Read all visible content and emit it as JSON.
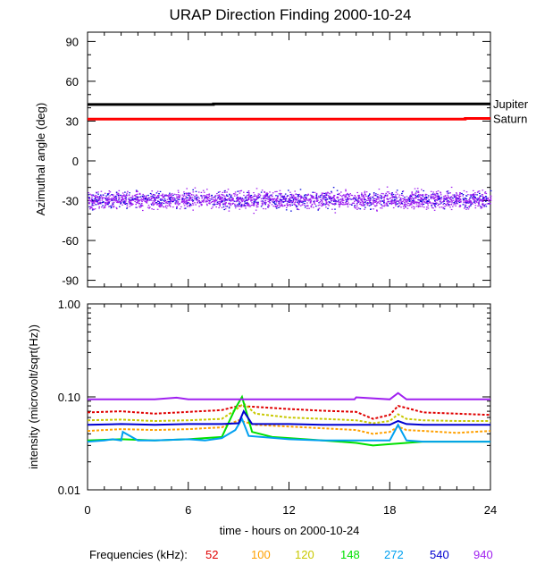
{
  "chart_data": [
    {
      "type": "scatter",
      "title": "URAP Direction Finding  2000-10-24",
      "xlabel": "",
      "ylabel": "Azimuthal angle (deg)",
      "xlim": [
        0,
        24
      ],
      "ylim": [
        -95,
        97
      ],
      "xticks": [
        0,
        6,
        12,
        18,
        24
      ],
      "yticks": [
        -90,
        -60,
        -30,
        0,
        30,
        60,
        90
      ],
      "ytick_labels": [
        "-90",
        "-60",
        "-30",
        "0",
        "30",
        "60",
        "90"
      ],
      "lines": [
        {
          "name": "Jupiter",
          "color": "#000000",
          "x": [
            0,
            7.5,
            7.5,
            24
          ],
          "y": [
            42.5,
            42.5,
            43,
            43
          ]
        },
        {
          "name": "Saturn",
          "color": "#ff0000",
          "x": [
            0,
            22.5,
            22.5,
            24
          ],
          "y": [
            31.5,
            31.5,
            32,
            32
          ]
        }
      ],
      "scatter": {
        "description_range": [
          -42,
          -15
        ],
        "center": -29,
        "colors": [
          "#a020f0",
          "#0000dd"
        ]
      }
    },
    {
      "type": "line",
      "xlabel": "time - hours on 2000-10-24",
      "ylabel": "intensity (microvolt/sqrt(Hz))",
      "xlim": [
        0,
        24
      ],
      "ylim": [
        0.01,
        1.0
      ],
      "yscale": "log",
      "xticks": [
        0,
        6,
        12,
        18,
        24
      ],
      "xtick_labels": [
        "0",
        "6",
        "12",
        "18",
        "24"
      ],
      "yticks": [
        0.01,
        0.1,
        1.0
      ],
      "ytick_labels": [
        "0.01",
        "0.10",
        "1.00"
      ],
      "legend_prefix": "Frequencies (kHz):",
      "series": [
        {
          "name": "52",
          "color": "#e00000",
          "x": [
            0,
            2,
            4,
            6,
            8,
            9,
            10,
            12,
            14,
            16,
            17,
            18,
            18.5,
            19,
            20,
            22,
            24
          ],
          "y": [
            0.068,
            0.07,
            0.066,
            0.069,
            0.072,
            0.08,
            0.078,
            0.074,
            0.071,
            0.069,
            0.058,
            0.064,
            0.08,
            0.076,
            0.068,
            0.066,
            0.064
          ]
        },
        {
          "name": "100",
          "color": "#ffa000",
          "x": [
            0,
            2,
            4,
            6,
            8,
            9,
            10,
            12,
            14,
            16,
            17,
            18,
            18.5,
            19,
            20,
            22,
            24
          ],
          "y": [
            0.043,
            0.045,
            0.044,
            0.045,
            0.047,
            0.056,
            0.05,
            0.048,
            0.046,
            0.044,
            0.04,
            0.042,
            0.048,
            0.044,
            0.043,
            0.041,
            0.043
          ]
        },
        {
          "name": "120",
          "color": "#c8c800",
          "x": [
            0,
            2,
            4,
            6,
            8,
            8.8,
            9.3,
            10,
            12,
            14,
            16,
            17,
            18,
            18.5,
            19,
            20,
            22,
            24
          ],
          "y": [
            0.056,
            0.057,
            0.055,
            0.056,
            0.058,
            0.072,
            0.085,
            0.066,
            0.06,
            0.058,
            0.056,
            0.052,
            0.055,
            0.065,
            0.058,
            0.056,
            0.055,
            0.055
          ]
        },
        {
          "name": "148",
          "color": "#00e000",
          "x": [
            0,
            2,
            4,
            6,
            8,
            8.8,
            9.2,
            9.8,
            11,
            12,
            14,
            16,
            17,
            18,
            19,
            20,
            22,
            24
          ],
          "y": [
            0.034,
            0.035,
            0.034,
            0.035,
            0.037,
            0.075,
            0.1,
            0.042,
            0.037,
            0.036,
            0.034,
            0.032,
            0.03,
            0.031,
            0.032,
            0.033,
            0.033,
            0.033
          ]
        },
        {
          "name": "272",
          "color": "#00a0f0",
          "x": [
            0,
            1,
            1.5,
            2,
            2.1,
            3,
            4,
            6,
            7,
            8,
            8.8,
            9.2,
            9.6,
            12,
            14,
            16,
            18,
            18.5,
            19,
            20,
            22,
            24
          ],
          "y": [
            0.033,
            0.034,
            0.035,
            0.034,
            0.042,
            0.034,
            0.034,
            0.035,
            0.034,
            0.036,
            0.044,
            0.058,
            0.038,
            0.035,
            0.034,
            0.034,
            0.034,
            0.05,
            0.034,
            0.033,
            0.033,
            0.033
          ]
        },
        {
          "name": "540",
          "color": "#0000d0",
          "x": [
            0,
            2,
            4,
            6,
            8,
            9,
            9.3,
            9.8,
            12,
            14,
            16,
            18,
            18.5,
            19,
            20,
            22,
            24
          ],
          "y": [
            0.05,
            0.051,
            0.05,
            0.051,
            0.051,
            0.052,
            0.07,
            0.051,
            0.051,
            0.05,
            0.05,
            0.05,
            0.055,
            0.051,
            0.05,
            0.05,
            0.05
          ]
        },
        {
          "name": "940",
          "color": "#a020f0",
          "x": [
            0,
            2,
            4,
            5.3,
            6,
            8,
            12,
            15.9,
            16,
            18,
            18.5,
            19,
            22,
            24
          ],
          "y": [
            0.094,
            0.094,
            0.094,
            0.098,
            0.094,
            0.094,
            0.094,
            0.094,
            0.099,
            0.094,
            0.11,
            0.094,
            0.094,
            0.094
          ]
        }
      ]
    }
  ]
}
